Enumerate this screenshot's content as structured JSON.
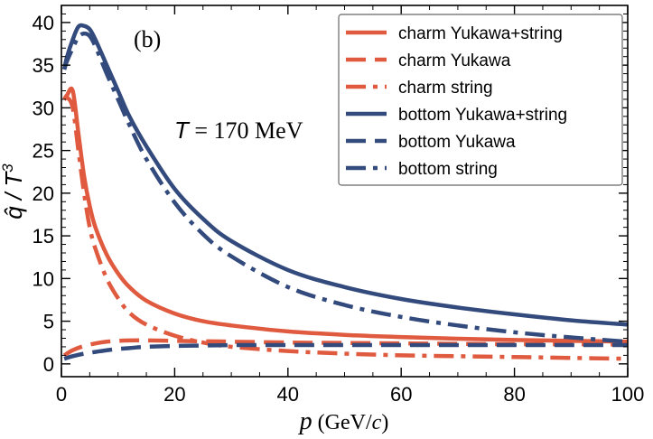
{
  "chart_data": {
    "type": "line",
    "panel_label": "(b)",
    "annotation": {
      "symbol": "T",
      "text": " = 170 MeV"
    },
    "xlabel": {
      "symbol": "p",
      "unit_prefix": " (GeV/",
      "unit_symbol": "c",
      "unit_suffix": ")"
    },
    "ylabel": {
      "hat": "q̂",
      "slash": " / ",
      "symbol": "T",
      "exponent": "3"
    },
    "xlim": [
      0,
      100
    ],
    "ylim": [
      -1.5,
      42
    ],
    "x_ticks": [
      0,
      20,
      40,
      60,
      80,
      100
    ],
    "x_tick_labels": [
      "0",
      "20",
      "40",
      "60",
      "80",
      "100"
    ],
    "y_ticks": [
      0,
      5,
      10,
      15,
      20,
      25,
      30,
      35,
      40
    ],
    "y_tick_labels": [
      "0",
      "5",
      "10",
      "15",
      "20",
      "25",
      "30",
      "35",
      "40"
    ],
    "legend_position": "top-right",
    "colors": {
      "charm": "#e05a3f",
      "bottom": "#334a7d"
    },
    "series": [
      {
        "name": "charm Yukawa+string",
        "color": "#e05a3f",
        "dash": "solid",
        "x": [
          0.5,
          1,
          2,
          3,
          4,
          5,
          6,
          8,
          10,
          12,
          15,
          20,
          25,
          30,
          40,
          50,
          60,
          70,
          80,
          90,
          100
        ],
        "y": [
          31.0,
          31.5,
          32.0,
          27.0,
          22.0,
          18.5,
          16.0,
          12.8,
          10.6,
          9.0,
          7.4,
          5.9,
          5.0,
          4.5,
          3.8,
          3.4,
          3.15,
          2.95,
          2.8,
          2.7,
          2.6
        ]
      },
      {
        "name": "charm Yukawa",
        "color": "#e05a3f",
        "dash": "dashed",
        "x": [
          0.5,
          2,
          4,
          6,
          8,
          10,
          12,
          15,
          20,
          25,
          30,
          40,
          50,
          60,
          70,
          80,
          90,
          100
        ],
        "y": [
          1.0,
          1.6,
          2.1,
          2.4,
          2.6,
          2.7,
          2.75,
          2.75,
          2.7,
          2.65,
          2.6,
          2.5,
          2.45,
          2.4,
          2.35,
          2.3,
          2.3,
          2.25
        ]
      },
      {
        "name": "charm string",
        "color": "#e05a3f",
        "dash": "dashdot",
        "x": [
          0.5,
          1,
          2,
          3,
          4,
          5,
          6,
          8,
          10,
          12,
          15,
          20,
          25,
          30,
          40,
          50,
          60,
          70,
          80,
          90,
          100
        ],
        "y": [
          31.0,
          31.2,
          30.0,
          25.0,
          20.0,
          16.0,
          13.5,
          10.0,
          7.7,
          6.0,
          4.6,
          3.3,
          2.5,
          2.0,
          1.5,
          1.2,
          1.0,
          0.9,
          0.8,
          0.7,
          0.6
        ]
      },
      {
        "name": "bottom Yukawa+string",
        "color": "#334a7d",
        "dash": "solid",
        "x": [
          0.5,
          1,
          2,
          3,
          4,
          5,
          6,
          8,
          10,
          12,
          15,
          20,
          25,
          30,
          40,
          50,
          60,
          70,
          80,
          90,
          100
        ],
        "y": [
          34.5,
          36.0,
          38.0,
          39.5,
          39.6,
          39.2,
          38.0,
          35.0,
          32.0,
          29.0,
          25.5,
          20.5,
          17.0,
          14.4,
          11.0,
          9.0,
          7.6,
          6.6,
          5.8,
          5.1,
          4.6
        ]
      },
      {
        "name": "bottom Yukawa",
        "color": "#334a7d",
        "dash": "dashed",
        "x": [
          0.5,
          2,
          4,
          6,
          8,
          10,
          12,
          15,
          20,
          25,
          30,
          40,
          50,
          60,
          70,
          80,
          90,
          100
        ],
        "y": [
          0.6,
          0.9,
          1.2,
          1.4,
          1.6,
          1.75,
          1.85,
          2.0,
          2.1,
          2.15,
          2.2,
          2.2,
          2.2,
          2.2,
          2.2,
          2.2,
          2.2,
          2.2
        ]
      },
      {
        "name": "bottom string",
        "color": "#334a7d",
        "dash": "dashdot",
        "x": [
          0.5,
          1,
          2,
          3,
          4,
          5,
          6,
          8,
          10,
          12,
          15,
          20,
          25,
          30,
          40,
          50,
          60,
          70,
          80,
          90,
          100
        ],
        "y": [
          34.5,
          35.5,
          37.0,
          38.3,
          38.7,
          38.4,
          37.2,
          34.0,
          31.0,
          28.0,
          24.0,
          18.9,
          15.2,
          12.6,
          9.0,
          6.9,
          5.5,
          4.5,
          3.7,
          3.1,
          2.6
        ]
      }
    ]
  }
}
